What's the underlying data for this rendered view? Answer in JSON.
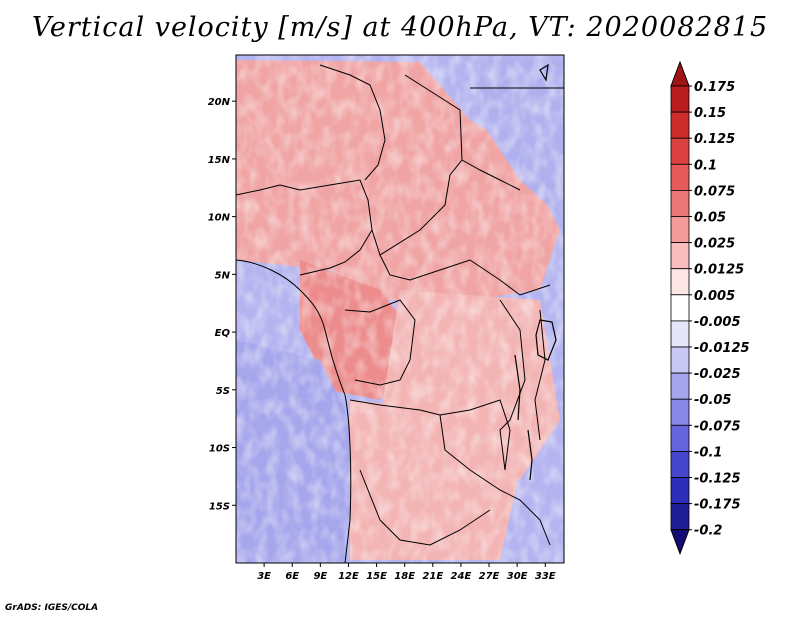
{
  "title": "Vertical velocity [m/s] at 400hPa, VT: 2020082815",
  "credit": "GrADS: IGES/COLA",
  "map": {
    "lon_labels": [
      "3E",
      "6E",
      "9E",
      "12E",
      "15E",
      "18E",
      "21E",
      "24E",
      "27E",
      "30E",
      "33E"
    ],
    "lat_labels": [
      "20N",
      "15N",
      "10N",
      "5N",
      "EQ",
      "5S",
      "10S",
      "15S"
    ],
    "lon_range": [
      0,
      35
    ],
    "lat_range": [
      -20,
      24
    ]
  },
  "colorbar": {
    "levels": [
      "0.175",
      "0.15",
      "0.125",
      "0.1",
      "0.075",
      "0.05",
      "0.025",
      "0.0125",
      "0.005",
      "-0.005",
      "-0.0125",
      "-0.025",
      "-0.05",
      "-0.075",
      "-0.1",
      "-0.125",
      "-0.175",
      "-0.2"
    ],
    "colors": [
      "#a01414",
      "#b91e1e",
      "#cd2d2d",
      "#dc4141",
      "#e45a5a",
      "#ec7878",
      "#f39a9a",
      "#f8bebe",
      "#fde6e6",
      "#ffffff",
      "#e6e6fb",
      "#c8c8f5",
      "#a5a5ee",
      "#8787e6",
      "#6464dc",
      "#4646cd",
      "#2d2db9",
      "#1e1e96",
      "#140a78"
    ]
  }
}
